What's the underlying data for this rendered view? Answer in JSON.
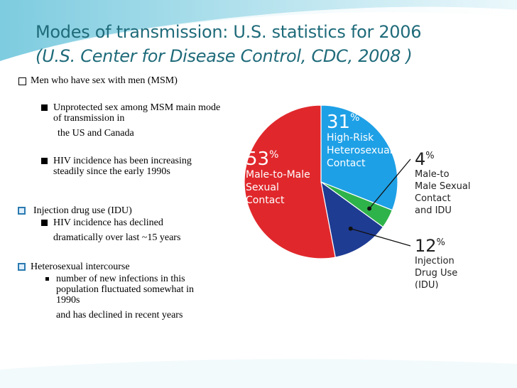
{
  "title_line1": "Modes of transmission: U.S. statistics for 2006",
  "title_line2": "(U.S. Center for Disease Control, CDC, 2008 )",
  "bullets": {
    "msm": "Men who have sex with men (MSM)",
    "msm_sub1_a": "Unprotected sex among MSM main mode of transmission in",
    "msm_sub1_b": "the US and Canada",
    "msm_sub2": "HIV incidence has been increasing steadily since the early 1990s",
    "idu": "Injection drug use (IDU)",
    "idu_sub1_a": "HIV incidence has declined",
    "idu_sub1_b": "dramatically over last ~15 years",
    "hetero": "Heterosexual intercourse",
    "hetero_sub1_a": "number of new infections in this population fluctuated somewhat in 1990s",
    "hetero_sub1_b": "and has declined in recent years"
  },
  "colors": {
    "title": "#1f6b7a",
    "msm": "#e0282c",
    "hetero": "#1ea0e6",
    "msm_idu": "#2eb34a",
    "idu": "#1f3c93"
  },
  "chart_data": {
    "type": "pie",
    "title": "",
    "slices": [
      {
        "key": "hetero",
        "pct_label": "31%",
        "name_lines": [
          "High-Risk",
          "Heterosexual",
          "Contact"
        ],
        "value": 31,
        "color": "#1ea0e6"
      },
      {
        "key": "msm_idu",
        "pct_label": "4%",
        "name_lines": [
          "Male-to",
          "Male Sexual",
          "Contact",
          "and IDU"
        ],
        "value": 4,
        "color": "#2eb34a"
      },
      {
        "key": "idu",
        "pct_label": "12%",
        "name_lines": [
          "Injection",
          "Drug Use",
          "(IDU)"
        ],
        "value": 12,
        "color": "#1f3c93"
      },
      {
        "key": "msm",
        "pct_label": "53%",
        "name_lines": [
          "Male-to-Male",
          "Sexual",
          "Contact"
        ],
        "value": 53,
        "color": "#e0282c"
      }
    ]
  }
}
